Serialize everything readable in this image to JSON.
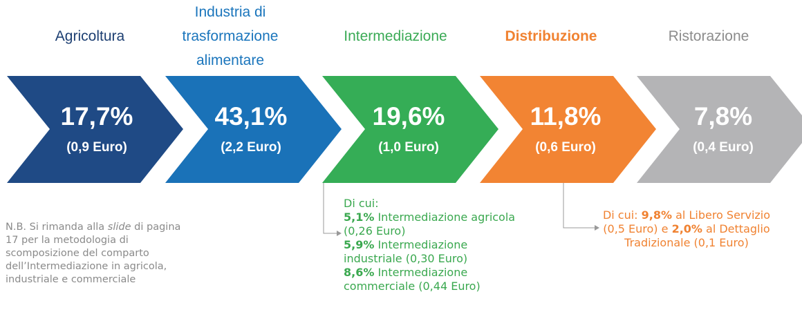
{
  "stages": [
    {
      "label": "Agricoltura",
      "share": "17,7%",
      "amount": "(0,9 Euro)"
    },
    {
      "label": "Industria di trasformazione alimentare",
      "share": "43,1%",
      "amount": "(2,2 Euro)"
    },
    {
      "label": "Intermediazione",
      "share": "19,6%",
      "amount": "(1,0 Euro)"
    },
    {
      "label": "Distribuzione",
      "share": "11,8%",
      "amount": "(0,6 Euro)"
    },
    {
      "label": "Ristorazione",
      "share": "7,8%",
      "amount": "(0,4 Euro)"
    }
  ],
  "intermediazione_note": {
    "intro": "Di cui:",
    "items": [
      {
        "share": "5,1%",
        "text": " Intermediazione agricola (0,26 Euro)"
      },
      {
        "share": "5,9%",
        "text": " Intermediazione industriale (0,30 Euro)"
      },
      {
        "share": "8,6%",
        "text": " Intermediazione commerciale (0,44 Euro)"
      }
    ]
  },
  "distribuzione_note": {
    "parts": [
      "Di cui: ",
      "9,8%",
      " al Libero Servizio (0,5 Euro) e ",
      "2,0%",
      " al Dettaglio Tradizionale (0,1 Euro)"
    ]
  },
  "nb_note": {
    "parts": [
      "N.B. Si rimanda alla ",
      "slide",
      " di pagina 17 per la metodologia di scomposizione del comparto dell’Intermediazione in agricola, industriale e commerciale"
    ]
  }
}
